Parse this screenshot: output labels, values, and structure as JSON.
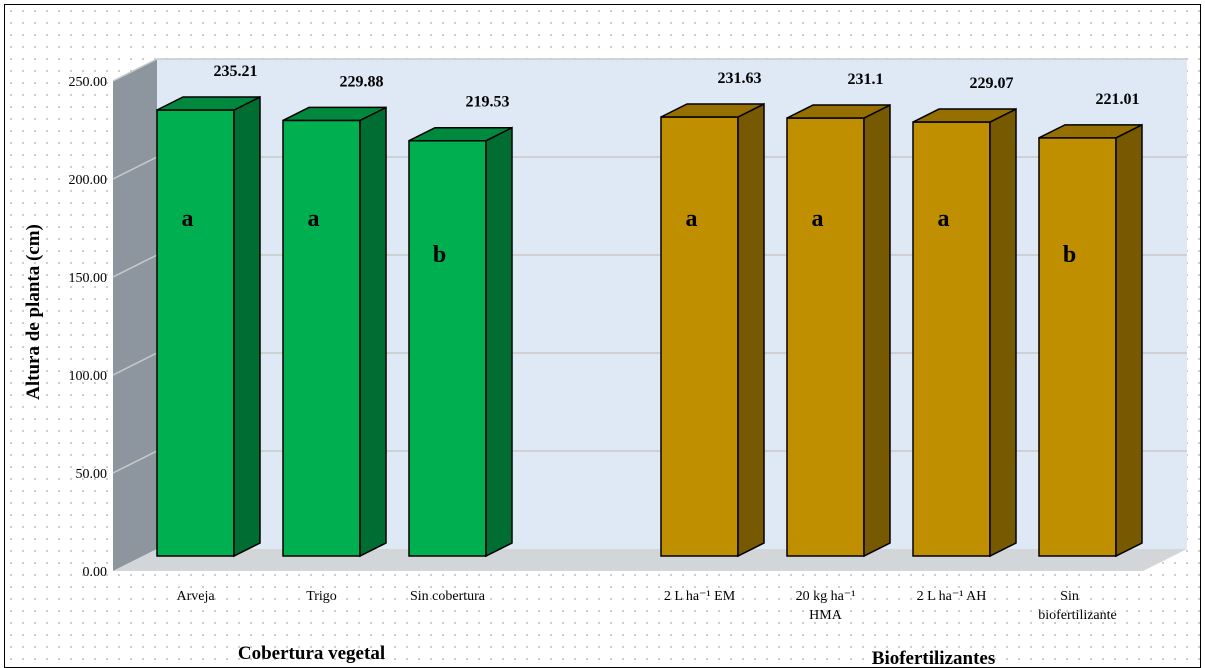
{
  "chart_data": {
    "type": "bar",
    "ylabel": "Altura de  planta (cm)",
    "ylim": [
      0,
      250
    ],
    "yticks": [
      "0.00",
      "50.00",
      "100.00",
      "150.00",
      "200.00",
      "250.00"
    ],
    "grid": true,
    "groups": [
      {
        "name": "Cobertura vegetal",
        "color": "#00b050",
        "categories": [
          {
            "label": [
              "Arveja"
            ],
            "value": 235.21,
            "value_label": "235.21",
            "letter": "a"
          },
          {
            "label": [
              "Trigo"
            ],
            "value": 229.88,
            "value_label": "229.88",
            "letter": "a"
          },
          {
            "label": [
              "Sin cobertura"
            ],
            "value": 219.53,
            "value_label": "219.53",
            "letter": "b"
          }
        ]
      },
      {
        "name": "Biofertilizantes",
        "color": "#bf8f00",
        "categories": [
          {
            "label": [
              "2 L ha⁻¹ EM"
            ],
            "value": 231.63,
            "value_label": "231.63",
            "letter": "a"
          },
          {
            "label": [
              "20 kg ha⁻¹",
              "HMA"
            ],
            "value": 231.1,
            "value_label": "231.1",
            "letter": "a"
          },
          {
            "label": [
              "2 L ha⁻¹ AH"
            ],
            "value": 229.07,
            "value_label": "229.07",
            "letter": "a"
          },
          {
            "label": [
              "Sin",
              "biofertilizante"
            ],
            "value": 221.01,
            "value_label": "221.01",
            "letter": "b"
          }
        ]
      }
    ]
  }
}
